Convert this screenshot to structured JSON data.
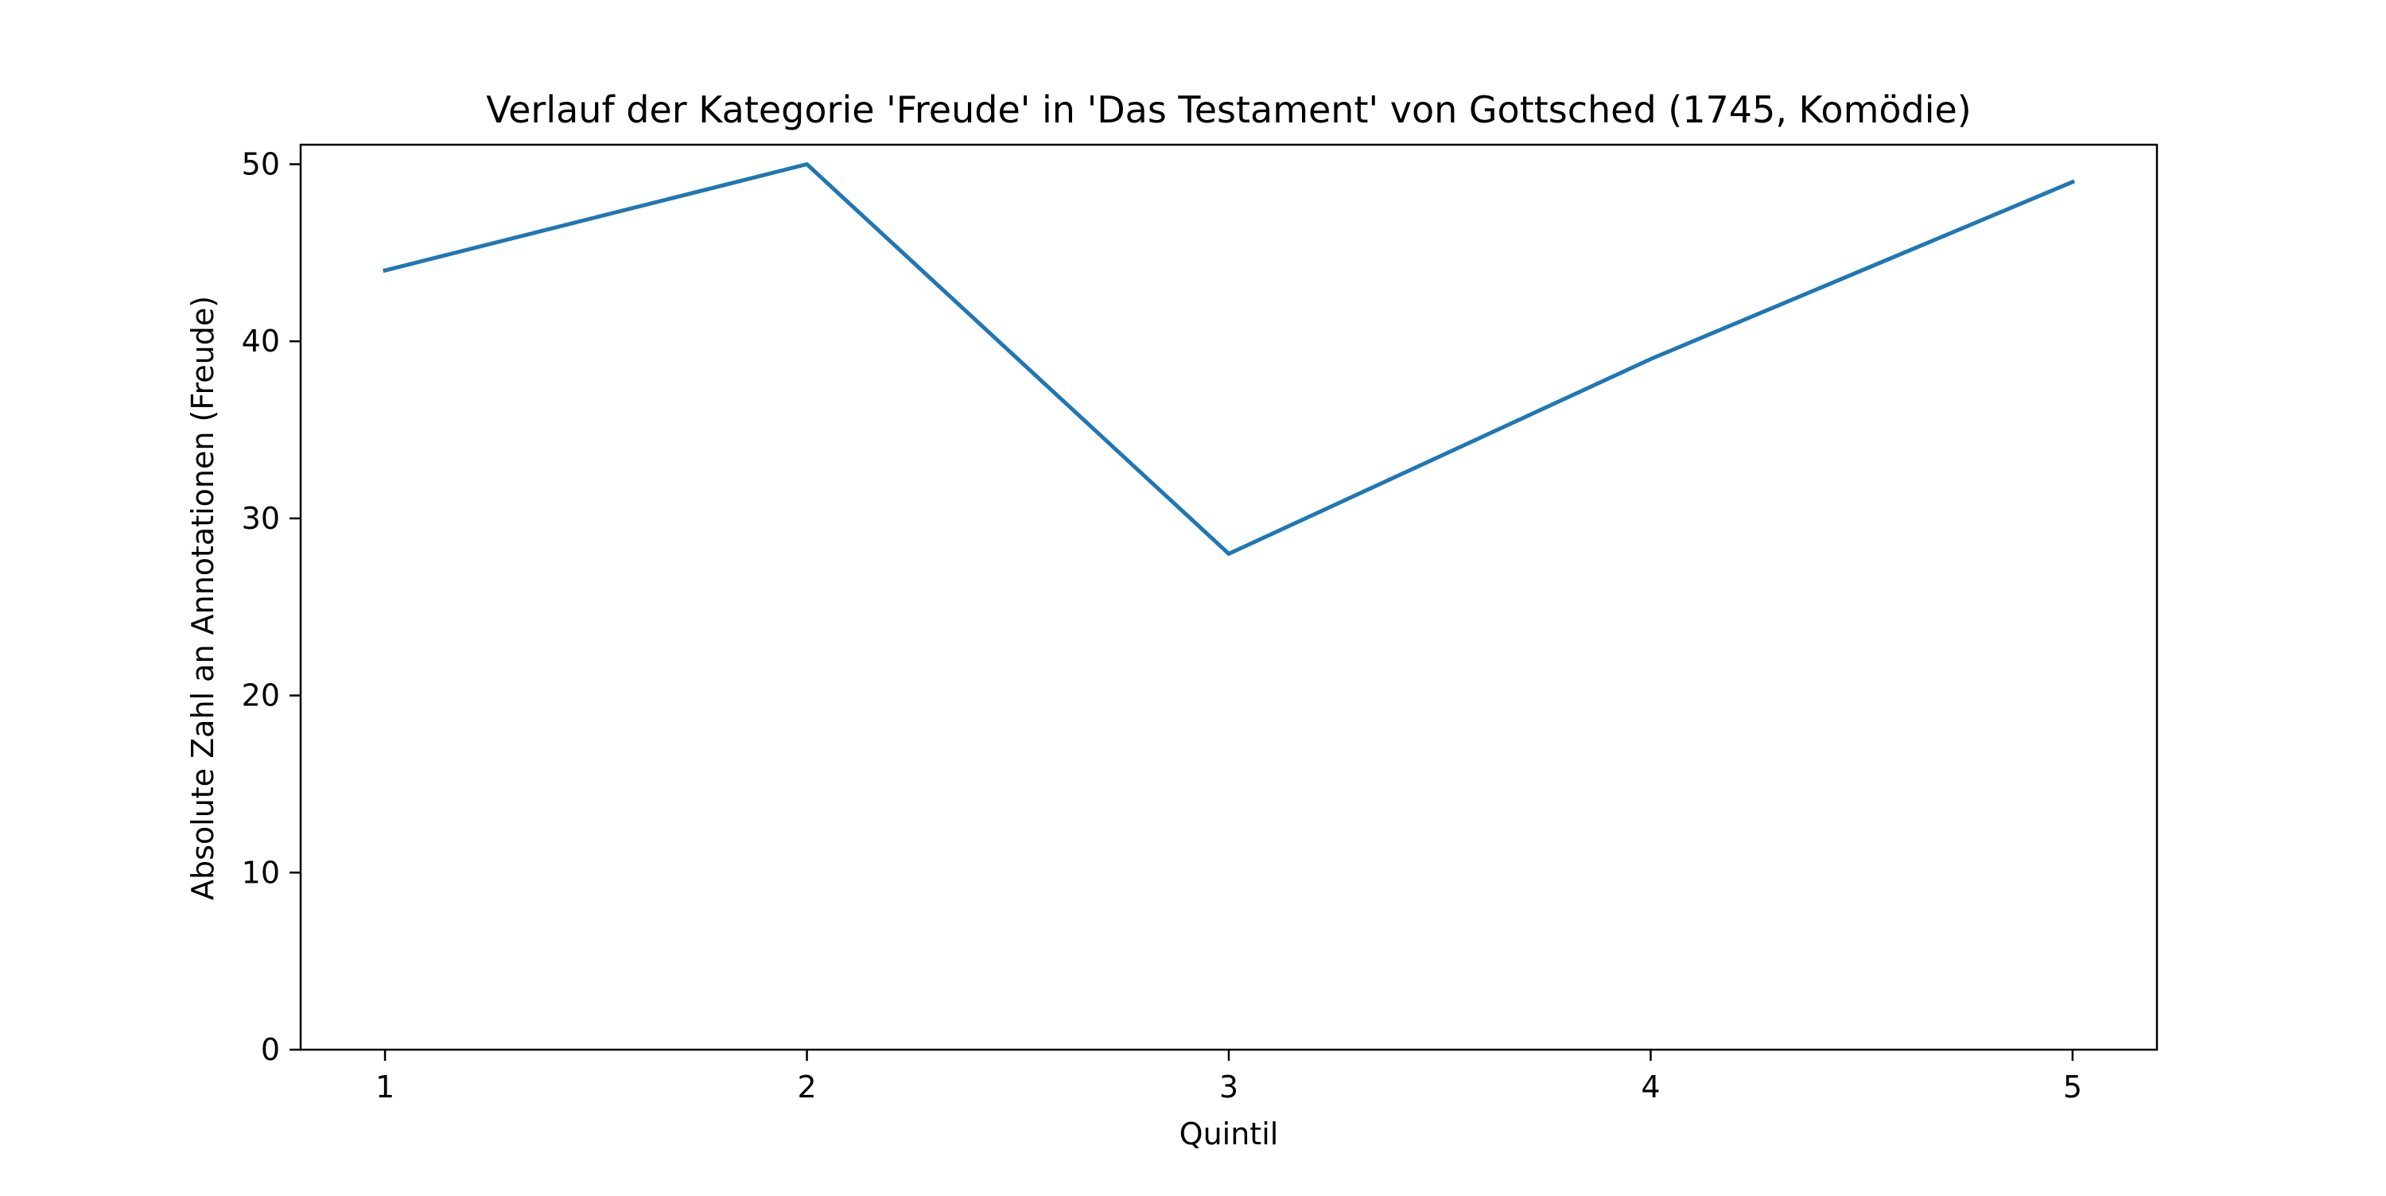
{
  "chart_data": {
    "type": "line",
    "title": "Verlauf der Kategorie 'Freude' in 'Das Testament' von Gottsched (1745, Komödie)",
    "xlabel": "Quintil",
    "ylabel": "Absolute Zahl an Annotationen (Freude)",
    "x": [
      1,
      2,
      3,
      4,
      5
    ],
    "x_ticks": [
      "1",
      "2",
      "3",
      "4",
      "5"
    ],
    "y_ticks": [
      "0",
      "10",
      "20",
      "30",
      "40",
      "50"
    ],
    "xlim": [
      0.8,
      5.2
    ],
    "ylim": [
      0,
      51.1
    ],
    "grid": false,
    "series": [
      {
        "values": [
          44,
          50,
          28,
          39,
          49
        ],
        "color": "#1f77b4"
      }
    ]
  }
}
